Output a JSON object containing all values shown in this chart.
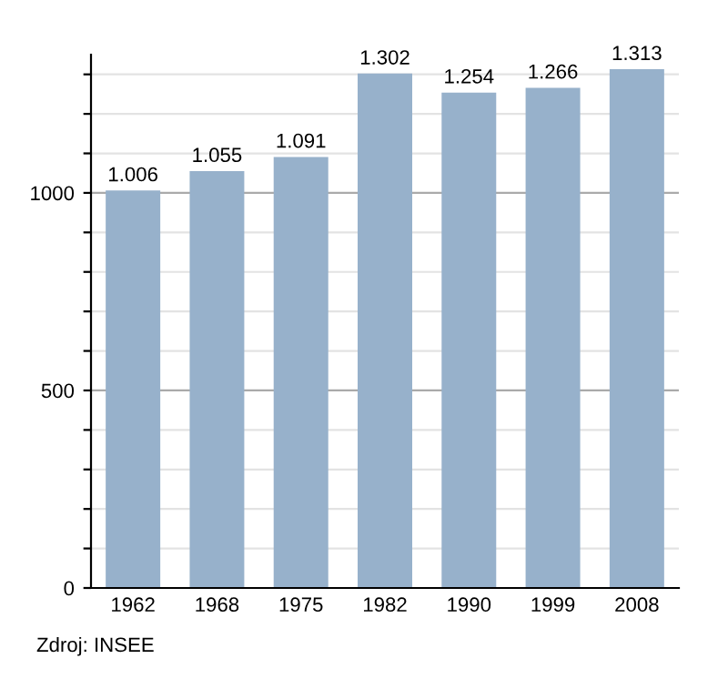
{
  "chart_data": {
    "type": "bar",
    "categories": [
      "1962",
      "1968",
      "1975",
      "1982",
      "1990",
      "1999",
      "2008"
    ],
    "values": [
      1006,
      1055,
      1091,
      1302,
      1254,
      1266,
      1313
    ],
    "value_labels": [
      "1.006",
      "1.055",
      "1.091",
      "1.302",
      "1.254",
      "1.266",
      "1.313"
    ],
    "color": "#97b1cb",
    "ylim": [
      0,
      1350
    ],
    "yticks": [
      0,
      {
        "value": 100,
        "label": null
      },
      {
        "value": 200,
        "label": null
      },
      {
        "value": 300,
        "label": null
      },
      {
        "value": 400,
        "label": null
      },
      500,
      {
        "value": 600,
        "label": null
      },
      {
        "value": 700,
        "label": null
      },
      {
        "value": 800,
        "label": null
      },
      {
        "value": 900,
        "label": null
      },
      1000,
      {
        "value": 1100,
        "label": null
      },
      {
        "value": 1200,
        "label": null
      },
      {
        "value": 1300,
        "label": null
      }
    ],
    "grid": "y",
    "annotations": [
      "Zdroj: INSEE"
    ]
  }
}
